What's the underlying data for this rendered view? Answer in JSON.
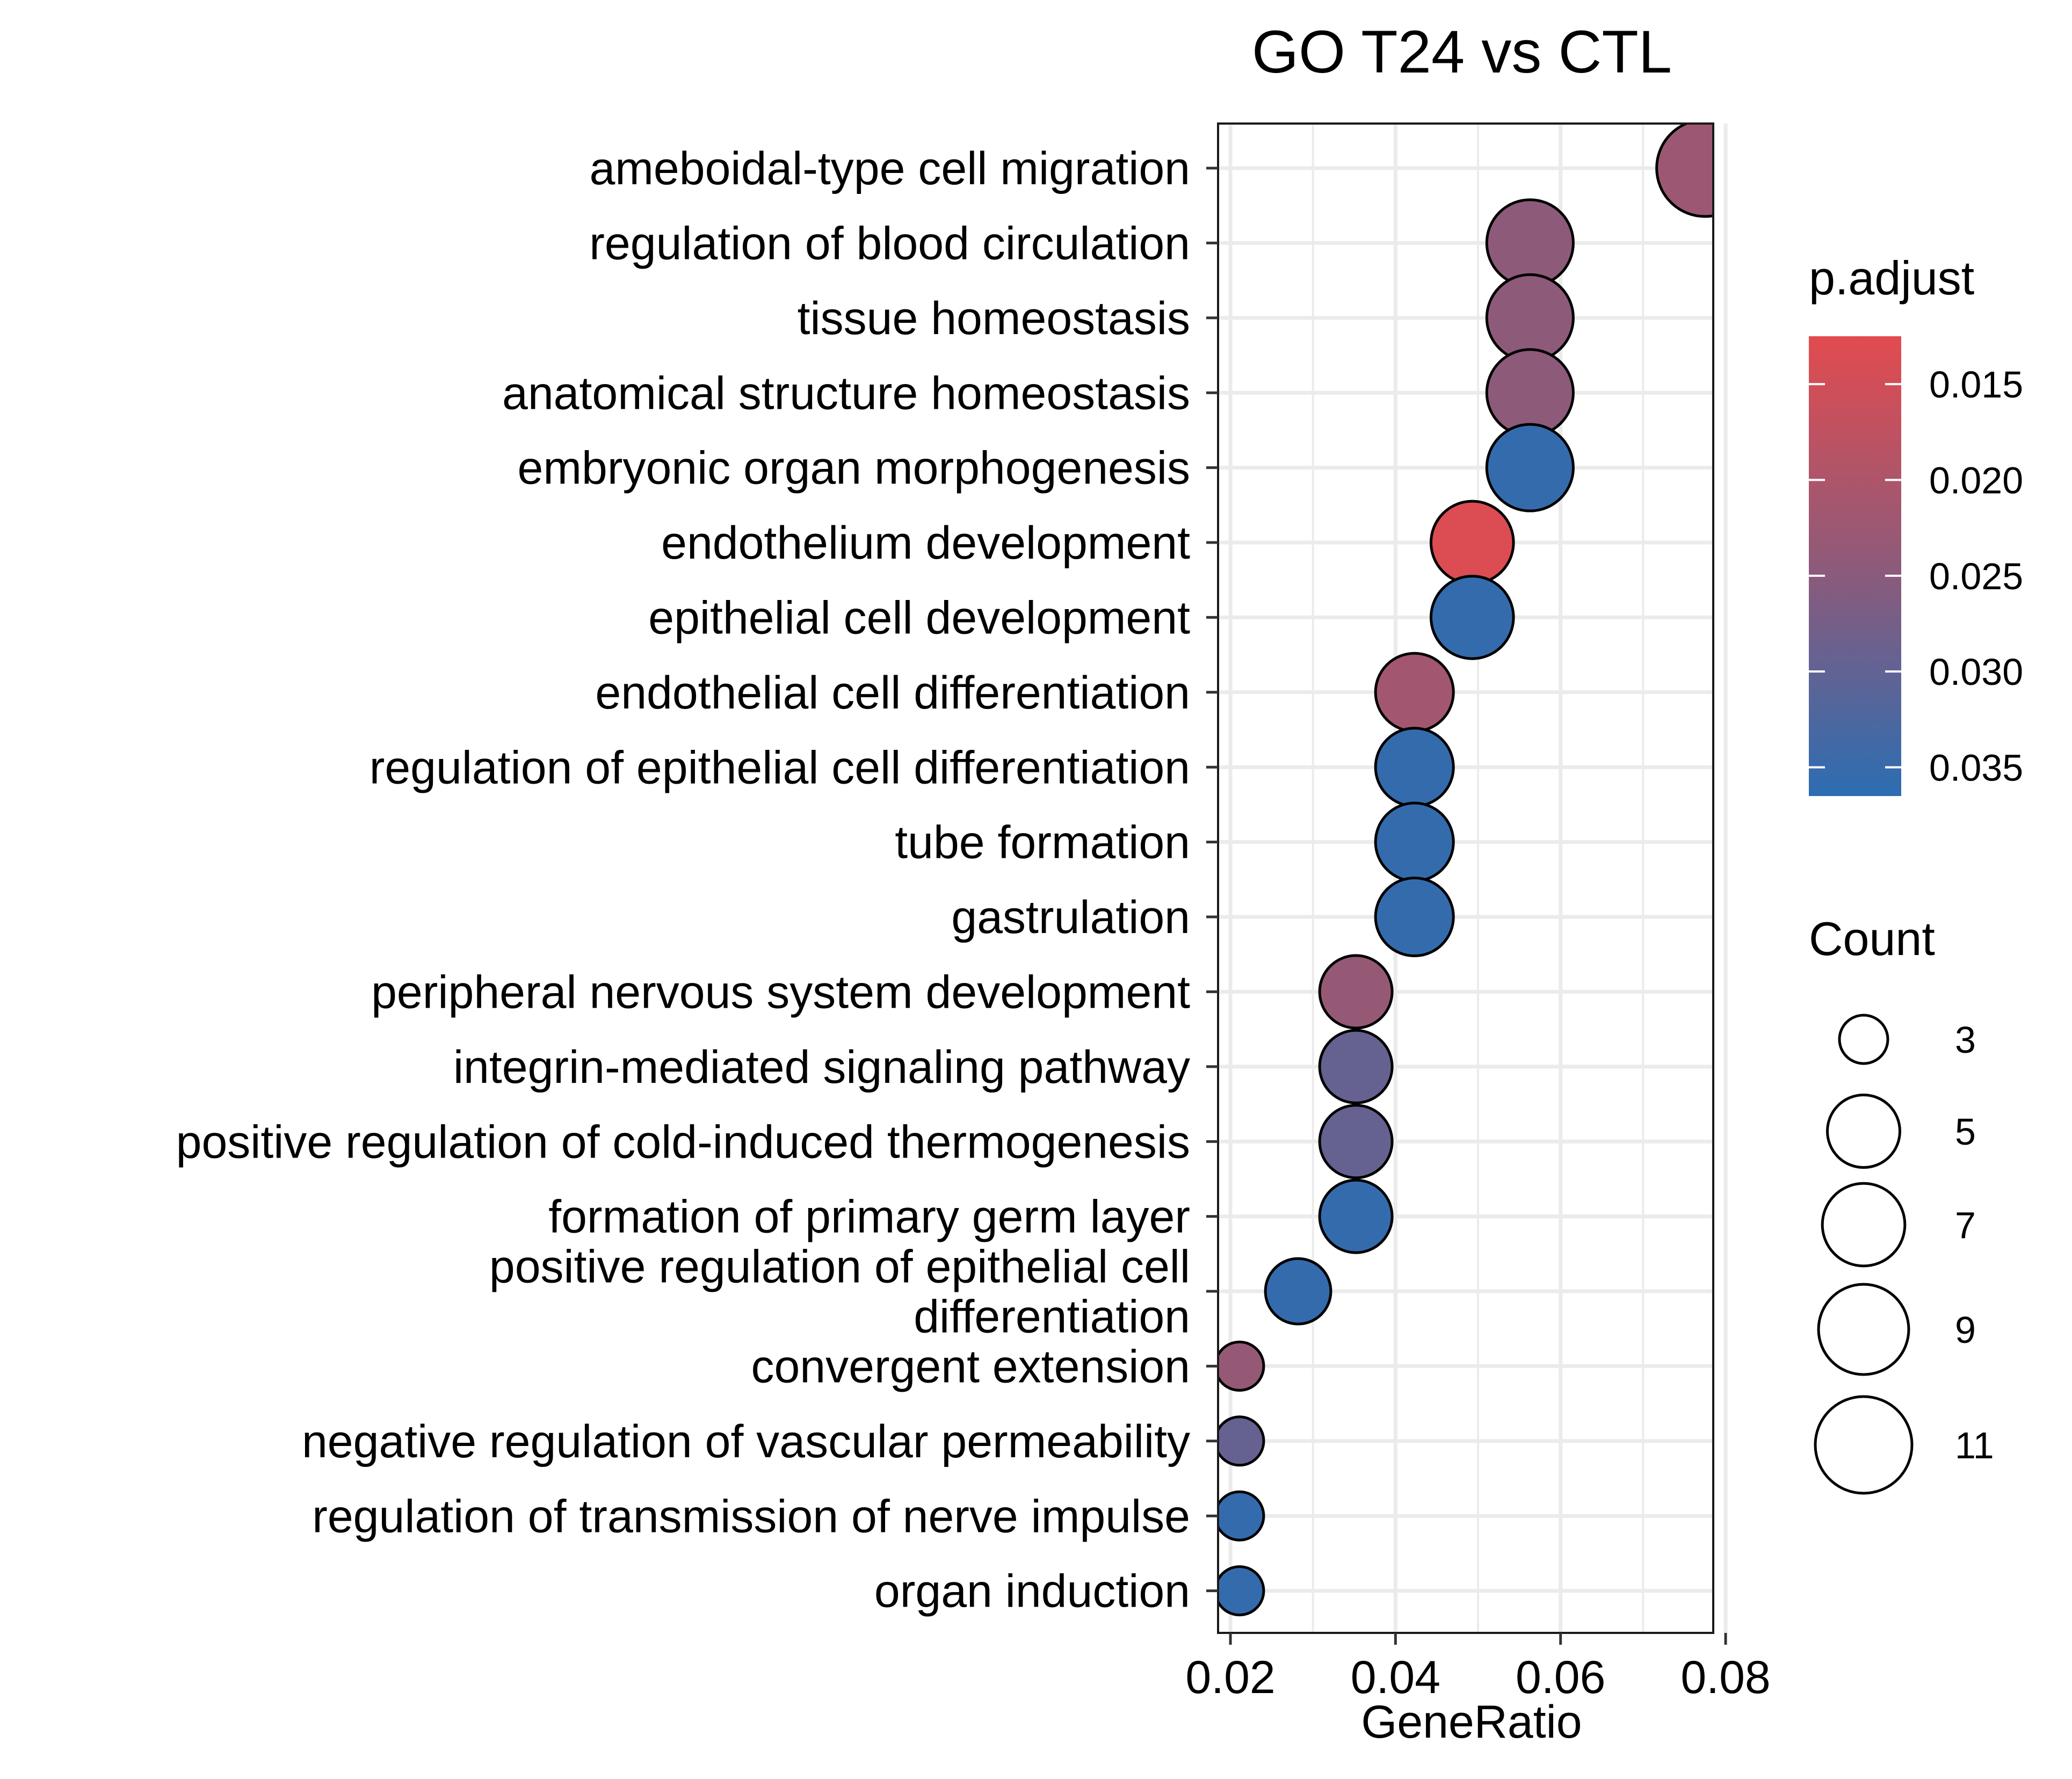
{
  "chart_data": {
    "type": "scatter",
    "title": "GO T24 vs CTL",
    "xlabel": "GeneRatio",
    "ylabel": "",
    "xlim": [
      0.0185,
      0.0785
    ],
    "xticks": [
      "0.02",
      "0.04",
      "0.06",
      "0.08"
    ],
    "xtick_values": [
      0.02,
      0.04,
      0.06,
      0.08
    ],
    "grid": true,
    "legend_placement": "right",
    "color_scale": {
      "title": "p.adjust",
      "low_color": "#E24B4F",
      "mid_color": "#8E5A7A",
      "high_color": "#2C6DB2",
      "range": [
        0.0125,
        0.0365
      ],
      "ticks": [
        "0.015",
        "0.020",
        "0.025",
        "0.030",
        "0.035"
      ],
      "tick_values": [
        0.015,
        0.02,
        0.025,
        0.03,
        0.035
      ]
    },
    "size_legend": {
      "title": "Count",
      "labels": [
        "3",
        "5",
        "7",
        "9",
        "11"
      ],
      "values": [
        3,
        5,
        7,
        9,
        11
      ]
    },
    "points": [
      {
        "term": "ameboidal-type cell migration",
        "x": 0.0775,
        "count": 11,
        "padj": 0.0225
      },
      {
        "term": "regulation of blood circulation",
        "x": 0.0563,
        "count": 8,
        "padj": 0.0245
      },
      {
        "term": "tissue homeostasis",
        "x": 0.0563,
        "count": 8,
        "padj": 0.0245
      },
      {
        "term": "anatomical structure homeostasis",
        "x": 0.0563,
        "count": 8,
        "padj": 0.0245
      },
      {
        "term": "embryonic organ morphogenesis",
        "x": 0.0563,
        "count": 8,
        "padj": 0.0355
      },
      {
        "term": "endothelium development",
        "x": 0.0493,
        "count": 7,
        "padj": 0.0135
      },
      {
        "term": "epithelial cell development",
        "x": 0.0493,
        "count": 7,
        "padj": 0.0355
      },
      {
        "term": "endothelial cell differentiation",
        "x": 0.0423,
        "count": 6,
        "padj": 0.0215
      },
      {
        "term": "regulation of epithelial cell differentiation",
        "x": 0.0423,
        "count": 6,
        "padj": 0.0355
      },
      {
        "term": "tube formation",
        "x": 0.0423,
        "count": 6,
        "padj": 0.0355
      },
      {
        "term": "gastrulation",
        "x": 0.0423,
        "count": 6,
        "padj": 0.0355
      },
      {
        "term": "peripheral nervous system development",
        "x": 0.0352,
        "count": 5,
        "padj": 0.0235
      },
      {
        "term": "integrin-mediated signaling pathway",
        "x": 0.0352,
        "count": 5,
        "padj": 0.0295
      },
      {
        "term": "positive regulation of cold-induced thermogenesis",
        "x": 0.0352,
        "count": 5,
        "padj": 0.0295
      },
      {
        "term": "formation of primary germ layer",
        "x": 0.0352,
        "count": 5,
        "padj": 0.0355
      },
      {
        "term": "positive regulation of epithelial cell differentiation",
        "x": 0.0282,
        "count": 4,
        "padj": 0.0355
      },
      {
        "term": "convergent extension",
        "x": 0.0211,
        "count": 3,
        "padj": 0.0235
      },
      {
        "term": "negative regulation of vascular permeability",
        "x": 0.0211,
        "count": 3,
        "padj": 0.0295
      },
      {
        "term": "regulation of transmission of nerve impulse",
        "x": 0.0211,
        "count": 3,
        "padj": 0.0355
      },
      {
        "term": "organ induction",
        "x": 0.0211,
        "count": 3,
        "padj": 0.0355
      }
    ],
    "term_labels": [
      [
        "ameboidal-type cell migration"
      ],
      [
        "regulation of blood circulation"
      ],
      [
        "tissue homeostasis"
      ],
      [
        "anatomical structure homeostasis"
      ],
      [
        "embryonic organ morphogenesis"
      ],
      [
        "endothelium development"
      ],
      [
        "epithelial cell development"
      ],
      [
        "endothelial cell differentiation"
      ],
      [
        "regulation of epithelial cell differentiation"
      ],
      [
        "tube formation"
      ],
      [
        "gastrulation"
      ],
      [
        "peripheral nervous system development"
      ],
      [
        "integrin-mediated signaling pathway"
      ],
      [
        "positive regulation of cold-induced thermogenesis"
      ],
      [
        "formation of primary germ layer"
      ],
      [
        "positive regulation of epithelial cell",
        "differentiation"
      ],
      [
        "convergent extension"
      ],
      [
        "negative regulation of vascular permeability"
      ],
      [
        "regulation of transmission of nerve impulse"
      ],
      [
        "organ induction"
      ]
    ]
  }
}
